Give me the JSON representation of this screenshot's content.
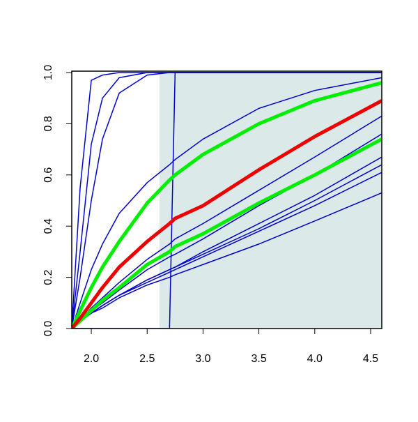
{
  "chart_data": {
    "type": "line",
    "x": [
      1.825,
      1.9,
      2.0,
      2.1,
      2.25,
      2.5,
      2.7,
      2.75,
      3.0,
      3.5,
      4.0,
      4.6
    ],
    "xlim": [
      1.825,
      4.6
    ],
    "ylim": [
      0,
      1
    ],
    "xticks": [
      {
        "value": 2,
        "label": "2.0"
      },
      2.5,
      {
        "value": 3,
        "label": "3.0"
      },
      3.5,
      {
        "value": 4,
        "label": "4.0"
      },
      4.5
    ],
    "yticks": [
      {
        "value": 0,
        "label": "0.0"
      },
      0.2,
      0.4,
      0.6,
      0.8,
      {
        "value": 1,
        "label": "1.0"
      }
    ],
    "shaded_region": {
      "x": [
        2.61,
        4.6
      ],
      "color": "#dce9e9"
    },
    "series": [
      {
        "color": "#0000cc",
        "width": 1.5,
        "values": [
          0,
          0.55,
          0.97,
          0.99,
          1,
          1,
          1,
          1,
          1,
          1,
          1,
          1
        ]
      },
      {
        "color": "#0000cc",
        "width": 1.5,
        "values": [
          0,
          0.3,
          0.72,
          0.9,
          0.98,
          1,
          1,
          1,
          1,
          1,
          1,
          1
        ]
      },
      {
        "color": "#0000cc",
        "width": 1.5,
        "values": [
          0,
          0.2,
          0.5,
          0.74,
          0.92,
          0.99,
          1,
          1,
          1,
          1,
          1,
          1
        ]
      },
      {
        "color": "#0000cc",
        "width": 1.5,
        "values": [
          0,
          0,
          0,
          0,
          0,
          0,
          0,
          1,
          1,
          1,
          1,
          1
        ]
      },
      {
        "color": "#0000cc",
        "width": 1.5,
        "values": [
          0,
          0.1,
          0.23,
          0.33,
          0.45,
          0.57,
          0.64,
          0.66,
          0.74,
          0.86,
          0.93,
          0.98
        ]
      },
      {
        "color": "#0000cc",
        "width": 1.5,
        "values": [
          0,
          0.03,
          0.08,
          0.12,
          0.18,
          0.27,
          0.33,
          0.35,
          0.41,
          0.54,
          0.67,
          0.83
        ]
      },
      {
        "color": "#0000cc",
        "width": 1.5,
        "values": [
          0,
          0.03,
          0.07,
          0.1,
          0.15,
          0.23,
          0.28,
          0.29,
          0.35,
          0.48,
          0.6,
          0.76
        ]
      },
      {
        "color": "#0000cc",
        "width": 1.5,
        "values": [
          0,
          0.03,
          0.06,
          0.09,
          0.13,
          0.19,
          0.23,
          0.24,
          0.3,
          0.41,
          0.52,
          0.67
        ]
      },
      {
        "color": "#0000cc",
        "width": 1.5,
        "values": [
          0,
          0.03,
          0.06,
          0.09,
          0.13,
          0.19,
          0.23,
          0.24,
          0.29,
          0.39,
          0.5,
          0.64
        ]
      },
      {
        "color": "#0000cc",
        "width": 1.5,
        "values": [
          0,
          0.03,
          0.06,
          0.09,
          0.13,
          0.18,
          0.22,
          0.23,
          0.28,
          0.38,
          0.48,
          0.61
        ]
      },
      {
        "color": "#0000cc",
        "width": 1.5,
        "values": [
          0,
          0.03,
          0.06,
          0.08,
          0.12,
          0.17,
          0.2,
          0.21,
          0.25,
          0.33,
          0.42,
          0.53
        ]
      },
      {
        "color": "#00ee00",
        "width": 5,
        "values": [
          0,
          0.07,
          0.16,
          0.24,
          0.34,
          0.49,
          0.58,
          0.6,
          0.68,
          0.8,
          0.89,
          0.96
        ]
      },
      {
        "color": "#00ee00",
        "width": 5,
        "values": [
          0,
          0.03,
          0.07,
          0.11,
          0.16,
          0.25,
          0.3,
          0.32,
          0.37,
          0.49,
          0.6,
          0.74
        ]
      },
      {
        "color": "#ee0000",
        "width": 5,
        "values": [
          0,
          0.04,
          0.1,
          0.16,
          0.24,
          0.34,
          0.41,
          0.43,
          0.48,
          0.62,
          0.75,
          0.89
        ]
      }
    ]
  }
}
